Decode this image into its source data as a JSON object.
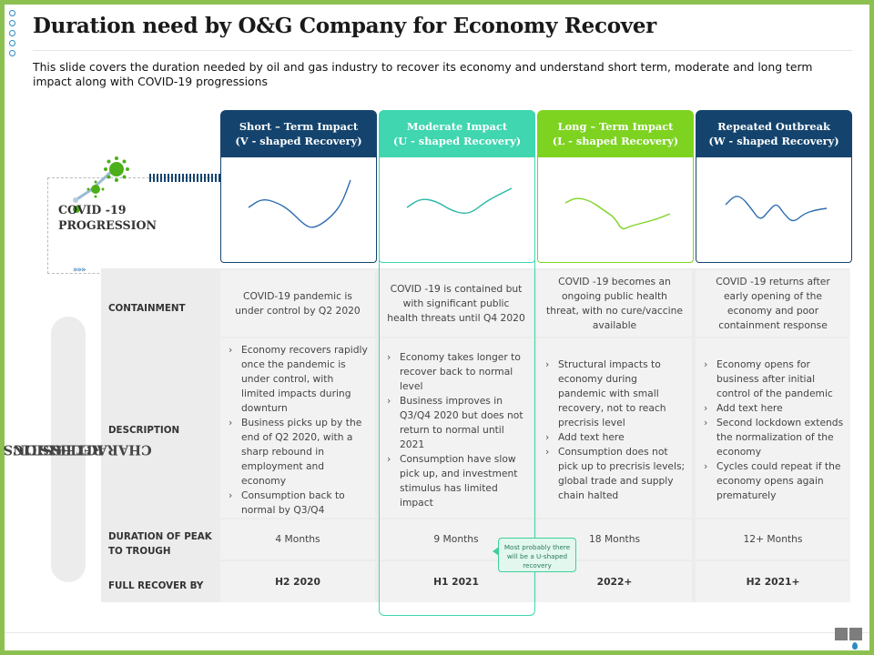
{
  "title": "Duration need by O&G Company for Economy Recover",
  "subtitle": "This slide covers the duration needed by oil and gas industry to recover its economy and understand short term, moderate and long term impact along with COVID-19 progressions",
  "covid": {
    "line1": "COVID -19",
    "line2": "PROGRESSION"
  },
  "side_label": {
    "line1": "RECESSION",
    "line2": "CHARACTERISTICS"
  },
  "colors": {
    "accent_green": "#8cc152",
    "teal": "#3fd6b0",
    "navy": "#14446e"
  },
  "columns": [
    {
      "header_line1": "Short – Term Impact",
      "header_line2": "(V - shaped Recovery)",
      "header_color": "#14446e",
      "line_color": "#2e6db0",
      "containment": "COVID-19 pandemic is under control by Q2 2020",
      "description": [
        "Economy recovers rapidly once the pandemic is under control, with limited impacts during downturn",
        "Business picks up by the end of Q2 2020, with a sharp rebound in employment and economy",
        "Consumption back to normal by Q3/Q4"
      ],
      "duration": "4 Months",
      "full_recover": "H2 2020"
    },
    {
      "header_line1": "Moderate Impact",
      "header_line2": "(U - shaped Recovery)",
      "header_color": "#3fd6b0",
      "line_color": "#27b8a6",
      "containment": "COVID -19 is contained but with significant public health threats until Q4 2020",
      "description": [
        "Economy takes longer to recover back to normal level",
        "Business improves in Q3/Q4 2020 but does not return to normal until 2021",
        "Consumption have slow pick up, and investment stimulus has limited impact"
      ],
      "duration": "9 Months",
      "full_recover": "H1 2021"
    },
    {
      "header_line1": "Long – Term Impact",
      "header_line2": "(L - shaped Recovery)",
      "header_color": "#7ed321",
      "line_color": "#7ed321",
      "containment": "COVID -19 becomes an ongoing public health threat, with no cure/vaccine available",
      "description": [
        "Structural impacts to economy during pandemic with small recovery, not to reach precrisis level",
        "Add text here",
        "Consumption does not pick up to precrisis levels; global trade and supply chain halted"
      ],
      "duration": "18 Months",
      "full_recover": "2022+"
    },
    {
      "header_line1": "Repeated Outbreak",
      "header_line2": "(W - shaped Recovery)",
      "header_color": "#14446e",
      "line_color": "#2e6db0",
      "containment": "COVID -19 returns after early opening of the economy and poor containment response",
      "description": [
        "Economy opens for business after initial control of the pandemic",
        "Add text here",
        "Second lockdown extends the normalization of the economy",
        "Cycles could repeat if the economy opens again prematurely"
      ],
      "duration": "12+ Months",
      "full_recover": "H2 2021+"
    }
  ],
  "row_labels": {
    "containment": "CONTAINMENT",
    "description": "DESCRIPTION",
    "duration_line1": "DURATION OF PEAK",
    "duration_line2": "TO TROUGH",
    "full_recover": "FULL RECOVER BY"
  },
  "callout": "Most probably there will be a U-shaped recovery",
  "arrows": "»»»"
}
